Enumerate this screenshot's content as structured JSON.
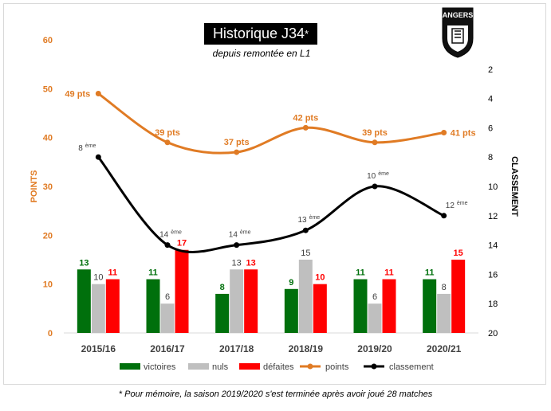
{
  "title": "Historique J34",
  "title_star": "*",
  "subtitle": "depuis remontée en L1",
  "logo_text": "ANGERS",
  "footnote": "*  Pour mémoire, la saison 2019/2020 s'est terminée après avoir joué 28 matches",
  "colors": {
    "victoires": "#00700c",
    "nuls": "#bfbfbf",
    "defaites": "#ff0000",
    "points": "#e07b24",
    "classement": "#000000"
  },
  "chart_data": {
    "type": "bar",
    "categories": [
      "2015/16",
      "2016/17",
      "2017/18",
      "2018/19",
      "2019/20",
      "2020/21"
    ],
    "ylabel": "POINTS",
    "y2label": "CLASSEMENT",
    "ylim": [
      0,
      60
    ],
    "yticks": [
      "0",
      "10",
      "20",
      "30",
      "40",
      "50",
      "60"
    ],
    "y2lim": [
      20,
      0
    ],
    "y2ticks": [
      "2",
      "4",
      "6",
      "8",
      "10",
      "12",
      "14",
      "16",
      "18",
      "20"
    ],
    "legend_position": "bottom",
    "series": [
      {
        "name": "victoires",
        "kind": "bar",
        "values": [
          13,
          11,
          8,
          9,
          11,
          11
        ],
        "labels": [
          "13",
          "11",
          "8",
          "9",
          "11",
          "11"
        ]
      },
      {
        "name": "nuls",
        "kind": "bar",
        "values": [
          10,
          6,
          13,
          15,
          6,
          8
        ],
        "labels": [
          "10",
          "6",
          "13",
          "15",
          "6",
          "8"
        ]
      },
      {
        "name": "défaites",
        "kind": "bar",
        "values": [
          11,
          17,
          13,
          10,
          11,
          15
        ],
        "labels": [
          "11",
          "17",
          "13",
          "10",
          "11",
          "15"
        ]
      },
      {
        "name": "points",
        "kind": "line",
        "axis": "left",
        "values": [
          49,
          39,
          37,
          42,
          39,
          41
        ],
        "labels": [
          "49 pts",
          "39 pts",
          "37 pts",
          "42 pts",
          "39 pts",
          "41 pts"
        ]
      },
      {
        "name": "classement",
        "kind": "line",
        "axis": "right",
        "values": [
          8,
          14,
          14,
          13,
          10,
          12
        ],
        "labels": [
          "8",
          "14",
          "14",
          "13",
          "10",
          "12"
        ],
        "label_suffix": "ème"
      }
    ]
  }
}
